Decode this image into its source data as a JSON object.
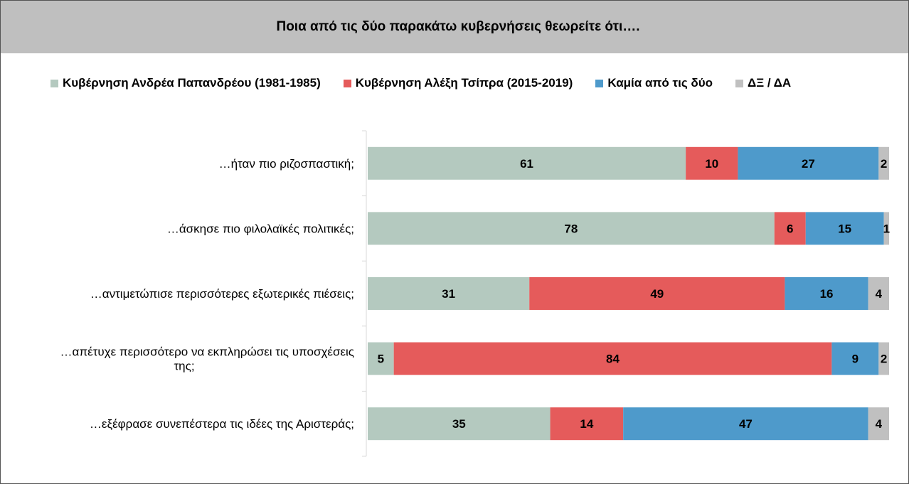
{
  "header": {
    "title": "Ποια από τις δύο παρακάτω κυβερνήσεις θεωρείτε ότι…."
  },
  "legend": [
    {
      "label": "Κυβέρνηση Ανδρέα Παπανδρέου (1981-1985)",
      "color": "#b4c9bf"
    },
    {
      "label": "Κυβέρνηση Αλέξη Τσίπρα (2015-2019)",
      "color": "#e55b5b"
    },
    {
      "label": "Καμία από τις δύο",
      "color": "#4e9acb"
    },
    {
      "label": "ΔΞ / ΔΑ",
      "color": "#c0c0c0"
    }
  ],
  "chart_data": {
    "type": "bar",
    "orientation": "horizontal",
    "stacked": true,
    "title": "Ποια από τις δύο παρακάτω κυβερνήσεις θεωρείτε ότι….",
    "categories": [
      [
        "…ήταν πιο ριζοσπαστική;"
      ],
      [
        "…άσκησε πιο φιλολαϊκές πολιτικές;"
      ],
      [
        "…αντιμετώπισε περισσότερες εξωτερικές πιέσεις;"
      ],
      [
        "…απέτυχε περισσότερο να εκπληρώσει τις υποσχέσεις",
        "της;"
      ],
      [
        "…εξέφρασε συνεπέστερα τις ιδέες της Αριστεράς;"
      ]
    ],
    "series": [
      {
        "name": "Κυβέρνηση Ανδρέα Παπανδρέου (1981-1985)",
        "color": "#b4c9bf",
        "values": [
          61,
          78,
          31,
          5,
          35
        ]
      },
      {
        "name": "Κυβέρνηση Αλέξη Τσίπρα (2015-2019)",
        "color": "#e55b5b",
        "values": [
          10,
          6,
          49,
          84,
          14
        ]
      },
      {
        "name": "Καμία από τις δύο",
        "color": "#4e9acb",
        "values": [
          27,
          15,
          16,
          9,
          47
        ]
      },
      {
        "name": "ΔΞ / ΔΑ",
        "color": "#c0c0c0",
        "values": [
          2,
          1,
          4,
          2,
          4
        ]
      }
    ],
    "xlim": [
      0,
      100
    ],
    "legend_position": "top",
    "grid": false,
    "data_labels": true
  }
}
